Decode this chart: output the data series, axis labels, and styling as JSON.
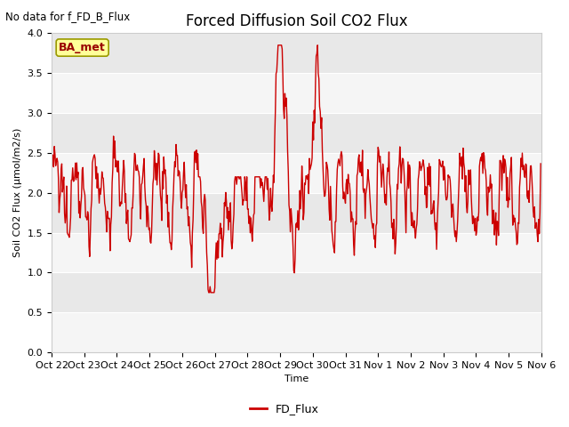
{
  "title": "Forced Diffusion Soil CO2 Flux",
  "subtitle": "No data for f_FD_B_Flux",
  "xlabel": "Time",
  "ylabel": "Soil CO2 Flux (μmol/m2/s)",
  "ylim": [
    0.0,
    4.0
  ],
  "yticks": [
    0.0,
    0.5,
    1.0,
    1.5,
    2.0,
    2.5,
    3.0,
    3.5,
    4.0
  ],
  "line_color": "#cc0000",
  "line_width": 1.0,
  "legend_label": "FD_Flux",
  "legend_line_color": "#cc0000",
  "fig_bg_color": "#ffffff",
  "plot_bg_color": "#e8e8e8",
  "ba_met_label": "BA_met",
  "ba_met_facecolor": "#ffff99",
  "ba_met_edgecolor": "#999900",
  "ba_met_textcolor": "#990000",
  "tick_label_fontsize": 8,
  "title_fontsize": 12,
  "subtitle_fontsize": 8.5
}
